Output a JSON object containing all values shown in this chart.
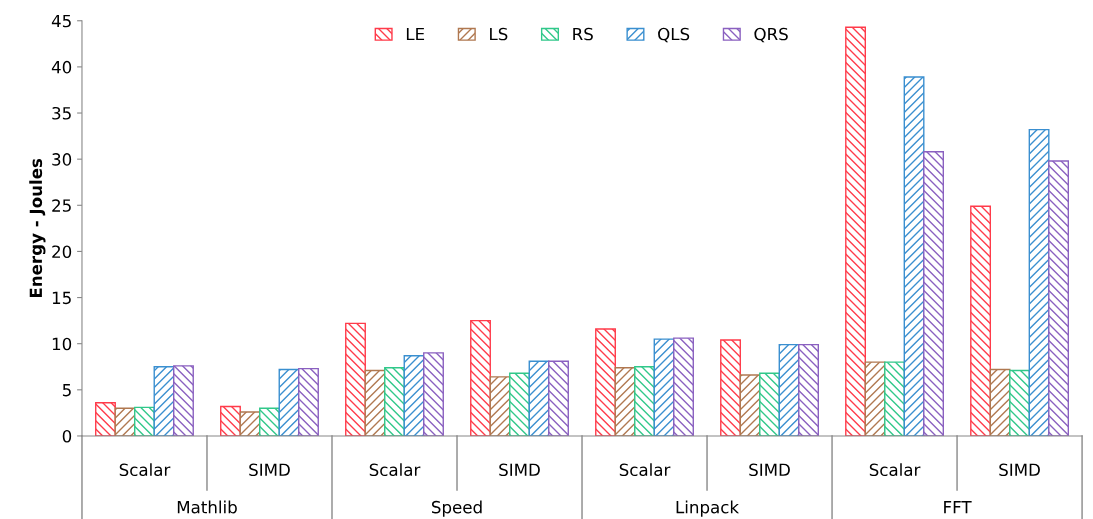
{
  "chart_data": {
    "type": "bar",
    "ylabel": "Energy - Joules",
    "categories": [
      "Scalar",
      "SIMD",
      "Scalar",
      "SIMD",
      "Scalar",
      "SIMD",
      "Scalar",
      "SIMD"
    ],
    "annotations": [
      "Mathlib",
      "Speed",
      "Linpack",
      "FFT"
    ],
    "series": [
      {
        "name": "LE",
        "color": "#ff3b4a",
        "values": [
          3.6,
          3.2,
          12.2,
          12.5,
          11.6,
          10.4,
          44.3,
          24.9
        ]
      },
      {
        "name": "LS",
        "color": "#b07850",
        "values": [
          3.0,
          2.6,
          7.1,
          6.4,
          7.4,
          6.6,
          8.0,
          7.2
        ]
      },
      {
        "name": "RS",
        "color": "#30c88a",
        "values": [
          3.1,
          3.0,
          7.4,
          6.8,
          7.5,
          6.8,
          8.0,
          7.1
        ]
      },
      {
        "name": "QLS",
        "color": "#3a8fd0",
        "values": [
          7.5,
          7.2,
          8.7,
          8.1,
          10.5,
          9.9,
          38.9,
          33.2
        ]
      },
      {
        "name": "QRS",
        "color": "#8a60c0",
        "values": [
          7.6,
          7.3,
          9.0,
          8.1,
          10.6,
          9.9,
          30.8,
          29.8
        ]
      }
    ],
    "ylim": [
      0,
      45
    ],
    "yticks": [
      0,
      5,
      10,
      15,
      20,
      25,
      30,
      35,
      40,
      45
    ],
    "grid": false,
    "legend": "top"
  }
}
